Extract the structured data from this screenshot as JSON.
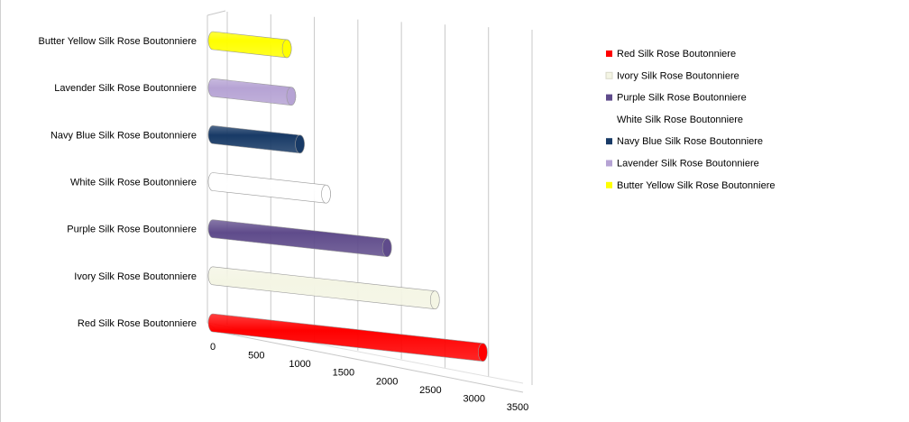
{
  "chart_data": {
    "type": "bar",
    "orientation": "horizontal",
    "style": "3d-cylinder",
    "categories": [
      "Red Silk Rose Boutonniere",
      "Ivory Silk Rose  Boutonniere",
      "Purple Silk Rose Boutonniere",
      "White Silk Rose Boutonniere",
      "Navy Blue Silk Rose Boutonniere",
      "Lavender Silk Rose Boutonniere",
      "Butter Yellow Silk Rose Boutonniere"
    ],
    "values": [
      3100,
      2550,
      2000,
      1300,
      1000,
      900,
      850
    ],
    "colors": [
      "#ff0000",
      "#f4f5e4",
      "#5f4b8b",
      "#ffffff",
      "#183a66",
      "#b6a3d4",
      "#ffff00"
    ],
    "x_ticks": [
      "0",
      "500",
      "1000",
      "1500",
      "2000",
      "2500",
      "3000",
      "3500"
    ],
    "xlim": [
      0,
      3500
    ],
    "grid": true,
    "legend_position": "right",
    "legend": [
      {
        "label": "Red Silk Rose Boutonniere",
        "color": "#ff0000"
      },
      {
        "label": "Ivory Silk Rose  Boutonniere",
        "color": "#f4f5e4"
      },
      {
        "label": "Purple Silk Rose Boutonniere",
        "color": "#5f4b8b"
      },
      {
        "label": "White Silk Rose Boutonniere",
        "color": "#ffffff"
      },
      {
        "label": "Navy Blue Silk Rose Boutonniere",
        "color": "#183a66"
      },
      {
        "label": "Lavender Silk Rose Boutonniere",
        "color": "#b6a3d4"
      },
      {
        "label": "Butter Yellow Silk Rose Boutonniere",
        "color": "#ffff00"
      }
    ]
  }
}
